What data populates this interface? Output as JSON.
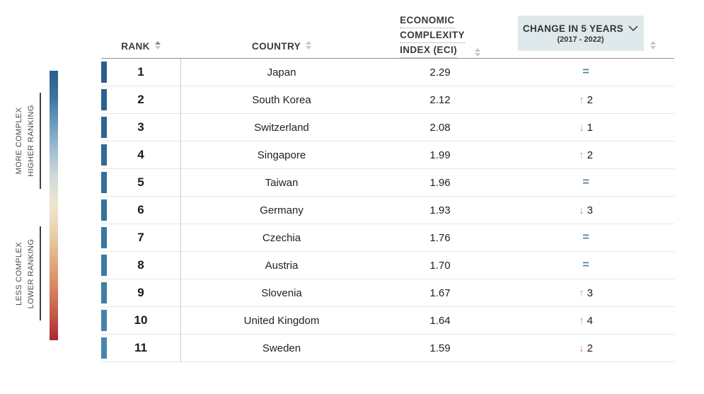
{
  "colors": {
    "up_arrow": "#8cbb98",
    "down_arrow": "#ee8270",
    "equal_sign": "#4d7f9e",
    "change_header_bg": "#dfe9ec",
    "header_border": "#8f8f8f",
    "row_border": "#e6e6e6",
    "column_divider": "#cccccc"
  },
  "symbols": {
    "up": "↑",
    "down": "↓",
    "equal": "="
  },
  "legend": {
    "more_complex": [
      "MORE COMPLEX",
      "HIGHER RANKING"
    ],
    "less_complex": [
      "LESS COMPLEX",
      "LOWER RANKING"
    ],
    "colorbar_gradient": [
      "#2a5d8c",
      "#3e75a0",
      "#6f9cbd",
      "#a3c0d3",
      "#d3dcd8",
      "#eee6cf",
      "#ead1ad",
      "#e2ad83",
      "#d8885f",
      "#c55b4c",
      "#a92734"
    ]
  },
  "table": {
    "sort": {
      "rank": "asc",
      "country": "none",
      "eci": "none",
      "change": "none"
    },
    "headers": {
      "rank": "RANK",
      "country": "COUNTRY",
      "eci_lines": [
        "ECONOMIC",
        "COMPLEXITY",
        "INDEX (ECI)"
      ],
      "change_title": "CHANGE IN 5 YEARS",
      "change_subtitle": "(2017 - 2022)"
    },
    "rows": [
      {
        "rank": "1",
        "country": "Japan",
        "eci": "2.29",
        "change": "same",
        "change_value": "",
        "bar_color": "#2b5e8c"
      },
      {
        "rank": "2",
        "country": "South Korea",
        "eci": "2.12",
        "change": "up",
        "change_value": "2",
        "bar_color": "#2d628f"
      },
      {
        "rank": "3",
        "country": "Switzerland",
        "eci": "2.08",
        "change": "down",
        "change_value": "1",
        "bar_color": "#2f6692"
      },
      {
        "rank": "4",
        "country": "Singapore",
        "eci": "1.99",
        "change": "up",
        "change_value": "2",
        "bar_color": "#316a96"
      },
      {
        "rank": "5",
        "country": "Taiwan",
        "eci": "1.96",
        "change": "same",
        "change_value": "",
        "bar_color": "#346e99"
      },
      {
        "rank": "6",
        "country": "Germany",
        "eci": "1.93",
        "change": "down",
        "change_value": "3",
        "bar_color": "#36729c"
      },
      {
        "rank": "7",
        "country": "Czechia",
        "eci": "1.76",
        "change": "same",
        "change_value": "",
        "bar_color": "#3976a0"
      },
      {
        "rank": "8",
        "country": "Austria",
        "eci": "1.70",
        "change": "same",
        "change_value": "",
        "bar_color": "#3c7aa3"
      },
      {
        "rank": "9",
        "country": "Slovenia",
        "eci": "1.67",
        "change": "up",
        "change_value": "3",
        "bar_color": "#407ea6"
      },
      {
        "rank": "10",
        "country": "United Kingdom",
        "eci": "1.64",
        "change": "up",
        "change_value": "4",
        "bar_color": "#4482aa"
      },
      {
        "rank": "11",
        "country": "Sweden",
        "eci": "1.59",
        "change": "down",
        "change_value": "2",
        "bar_color": "#4886ad"
      }
    ]
  }
}
